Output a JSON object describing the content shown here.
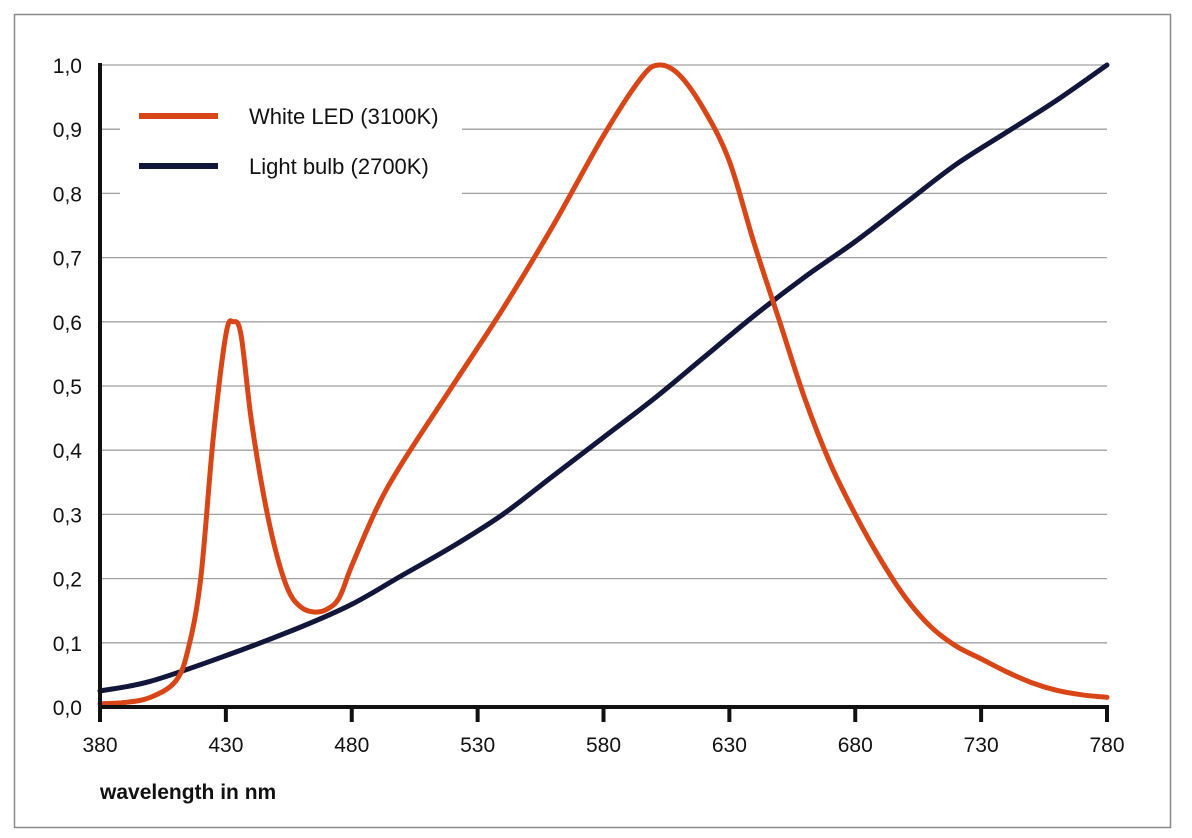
{
  "chart_data": {
    "type": "line",
    "title": "",
    "xlabel": "wavelength in nm",
    "ylabel": "",
    "xlim": [
      380,
      780
    ],
    "ylim": [
      0,
      1.0
    ],
    "xticks": [
      "380",
      "430",
      "480",
      "530",
      "580",
      "630",
      "680",
      "730",
      "780"
    ],
    "yticks": [
      "0,0",
      "0,1",
      "0,2",
      "0,3",
      "0,4",
      "0,5",
      "0,6",
      "0,7",
      "0,8",
      "0,9",
      "1,0"
    ],
    "grid": "horizontal",
    "legend_position": "top-left",
    "series": [
      {
        "name": "White LED (3100K)",
        "color": "#d84618",
        "x": [
          380,
          390,
          400,
          410,
          415,
          420,
          425,
          430,
          433,
          436,
          440,
          445,
          450,
          455,
          460,
          465,
          470,
          475,
          480,
          490,
          500,
          520,
          540,
          560,
          580,
          595,
          602,
          610,
          620,
          630,
          640,
          650,
          660,
          670,
          680,
          690,
          700,
          710,
          720,
          730,
          740,
          750,
          760,
          770,
          780
        ],
        "y": [
          0.005,
          0.007,
          0.015,
          0.04,
          0.09,
          0.2,
          0.42,
          0.58,
          0.6,
          0.58,
          0.45,
          0.33,
          0.24,
          0.18,
          0.155,
          0.148,
          0.152,
          0.17,
          0.22,
          0.31,
          0.38,
          0.5,
          0.62,
          0.75,
          0.89,
          0.98,
          1.0,
          0.985,
          0.93,
          0.85,
          0.72,
          0.6,
          0.48,
          0.38,
          0.3,
          0.23,
          0.17,
          0.125,
          0.095,
          0.075,
          0.055,
          0.038,
          0.026,
          0.019,
          0.015
        ]
      },
      {
        "name": "Light bulb (2700K)",
        "color": "#11163a",
        "x": [
          380,
          400,
          430,
          460,
          480,
          500,
          520,
          540,
          560,
          580,
          600,
          620,
          640,
          660,
          680,
          700,
          720,
          740,
          760,
          780
        ],
        "y": [
          0.025,
          0.04,
          0.08,
          0.125,
          0.16,
          0.205,
          0.25,
          0.3,
          0.36,
          0.42,
          0.48,
          0.545,
          0.61,
          0.67,
          0.725,
          0.785,
          0.845,
          0.895,
          0.945,
          1.0
        ]
      }
    ]
  }
}
